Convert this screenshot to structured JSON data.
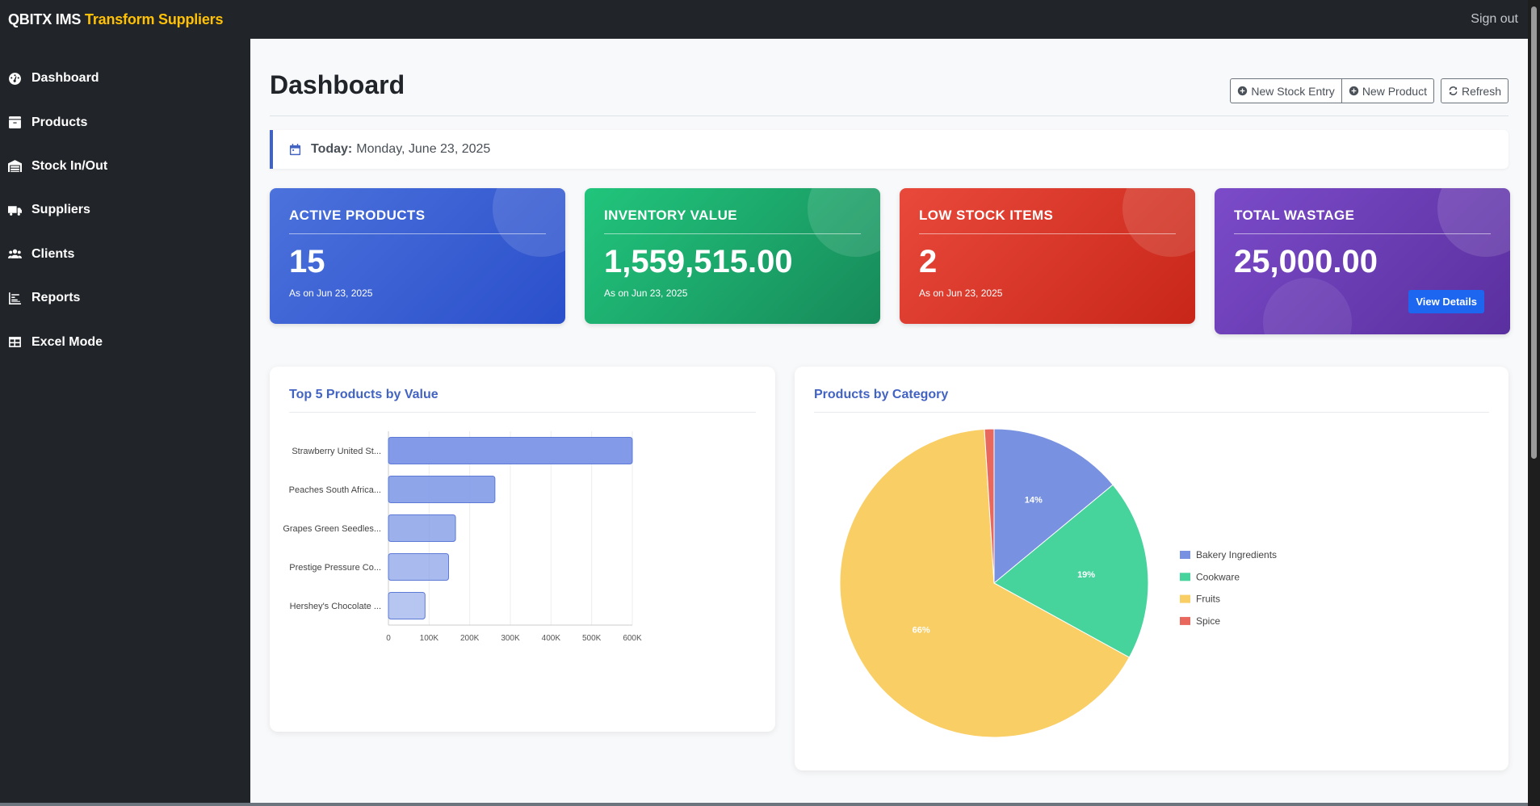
{
  "app": {
    "brand_main": "QBITX IMS",
    "brand_accent": "Transform Suppliers",
    "sign_out": "Sign out"
  },
  "sidebar": {
    "items": [
      {
        "label": "Dashboard",
        "icon": "tachometer-icon"
      },
      {
        "label": "Products",
        "icon": "box-icon"
      },
      {
        "label": "Stock In/Out",
        "icon": "warehouse-icon"
      },
      {
        "label": "Suppliers",
        "icon": "truck-icon"
      },
      {
        "label": "Clients",
        "icon": "users-icon"
      },
      {
        "label": "Reports",
        "icon": "chart-icon"
      },
      {
        "label": "Excel Mode",
        "icon": "table-icon"
      }
    ]
  },
  "header": {
    "title": "Dashboard",
    "new_stock_entry": "New Stock Entry",
    "new_product": "New Product",
    "refresh": "Refresh"
  },
  "today": {
    "label": "Today:",
    "date": "Monday, June 23, 2025"
  },
  "cards": {
    "active_products": {
      "title": "ACTIVE PRODUCTS",
      "value": "15",
      "note": "As on Jun 23, 2025"
    },
    "inventory_value": {
      "title": "INVENTORY VALUE",
      "value": "1,559,515.00",
      "note": "As on Jun 23, 2025"
    },
    "low_stock": {
      "title": "LOW STOCK ITEMS",
      "value": "2",
      "note": "As on Jun 23, 2025"
    },
    "total_wastage": {
      "title": "TOTAL WASTAGE",
      "value": "25,000.00",
      "button": "View Details"
    }
  },
  "colors": {
    "accent": "#4263c2",
    "bar": "#7b95e6",
    "pie_bakery": "#7891e0",
    "pie_cookware": "#47d39c",
    "pie_fruits": "#f8ce65",
    "pie_spice": "#e8685e"
  },
  "chart_data": [
    {
      "type": "bar",
      "orientation": "horizontal",
      "title": "Top 5 Products by Value",
      "categories": [
        "Strawberry United St...",
        "Peaches South Africa...",
        "Grapes Green Seedles...",
        "Prestige Pressure Co...",
        "Hershey's Chocolate ..."
      ],
      "values": [
        600000,
        262000,
        165000,
        148000,
        90000
      ],
      "xlim": [
        0,
        600000
      ],
      "xticks": [
        "0",
        "100K",
        "200K",
        "300K",
        "400K",
        "500K",
        "600K"
      ],
      "grid": true,
      "legend": "none"
    },
    {
      "type": "pie",
      "title": "Products by Category",
      "categories": [
        "Bakery Ingredients",
        "Cookware",
        "Fruits",
        "Spice"
      ],
      "values": [
        14,
        19,
        66,
        1
      ],
      "labels": [
        "14%",
        "19%",
        "66%",
        ""
      ],
      "legend": "right"
    }
  ]
}
